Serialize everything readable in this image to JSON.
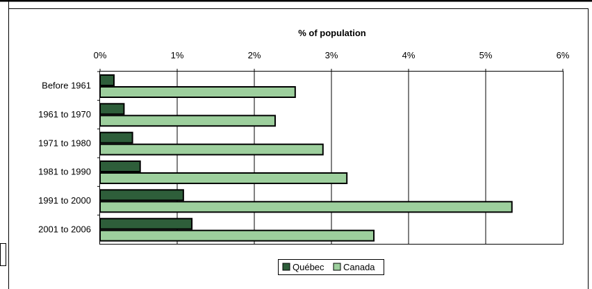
{
  "chart_data": {
    "type": "bar",
    "orientation": "horizontal",
    "title": "",
    "xlabel": "% of population",
    "ylabel": "",
    "xlim": [
      0,
      6
    ],
    "x_ticks": [
      "0%",
      "1%",
      "2%",
      "3%",
      "4%",
      "5%",
      "6%"
    ],
    "x_axis_position": "top",
    "grid": true,
    "categories": [
      "Before 1961",
      "1961 to 1970",
      "1971 to 1980",
      "1981 to 1990",
      "1991 to 2000",
      "2001 to 2006"
    ],
    "series": [
      {
        "name": "Québec",
        "color": "#2e5e3a",
        "values": [
          0.18,
          0.31,
          0.42,
          0.52,
          1.08,
          1.19
        ]
      },
      {
        "name": "Canada",
        "color": "#9dcf9d",
        "values": [
          2.53,
          2.27,
          2.89,
          3.2,
          5.34,
          3.55
        ]
      }
    ],
    "legend_position": "bottom"
  },
  "colors": {
    "bar_outline": "#000000",
    "gridline": "#000000",
    "frame": "#000000"
  }
}
